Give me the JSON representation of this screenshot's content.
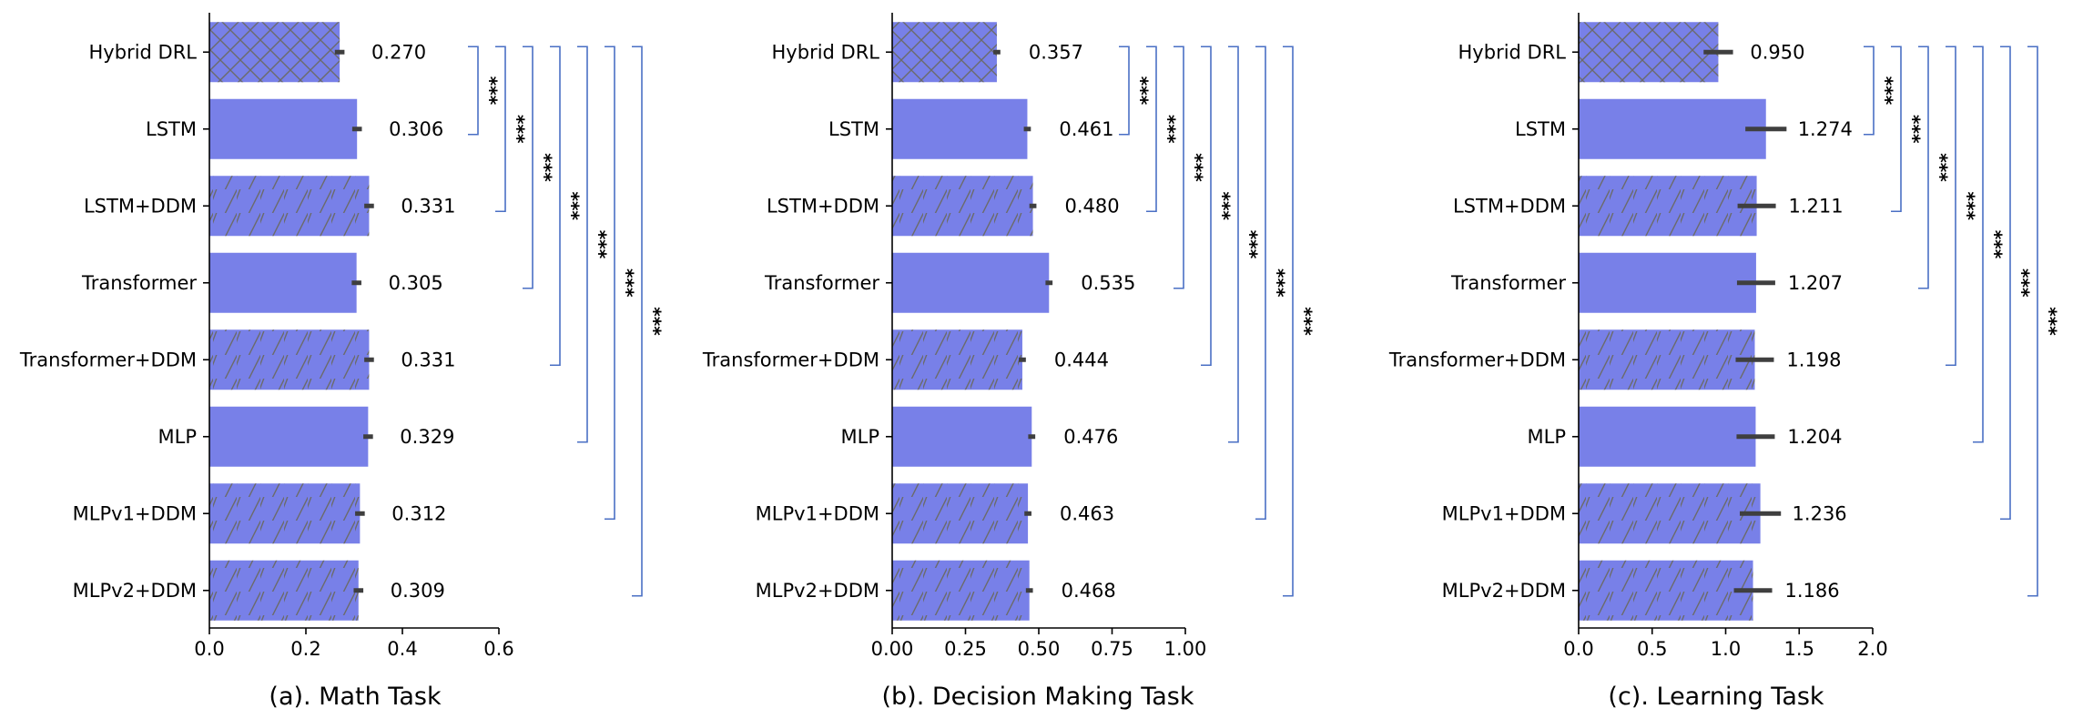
{
  "chart_data": [
    {
      "type": "bar",
      "orientation": "horizontal",
      "title": "(a). Math Task",
      "xlabel": "",
      "ylabel": "",
      "xlim": [
        0,
        0.6
      ],
      "xticks": [
        0.0,
        0.2,
        0.4,
        0.6
      ],
      "xtick_labels": [
        "0.0",
        "0.2",
        "0.4",
        "0.6"
      ],
      "categories": [
        "Hybrid DRL",
        "LSTM",
        "LSTM+DDM",
        "Transformer",
        "Transformer+DDM",
        "MLP",
        "MLPv1+DDM",
        "MLPv2+DDM"
      ],
      "values": [
        0.27,
        0.306,
        0.331,
        0.305,
        0.331,
        0.329,
        0.312,
        0.309
      ],
      "value_labels": [
        "0.270",
        "0.306",
        "0.331",
        "0.305",
        "0.331",
        "0.329",
        "0.312",
        "0.309"
      ],
      "error": [
        0.01,
        0.01,
        0.01,
        0.01,
        0.01,
        0.01,
        0.01,
        0.01
      ],
      "patterns": [
        "crosshatch",
        "solid",
        "diagonal",
        "solid",
        "diagonal",
        "solid",
        "diagonal",
        "diagonal"
      ],
      "significance": [
        {
          "from": "Hybrid DRL",
          "to": "LSTM",
          "label": "***"
        },
        {
          "from": "Hybrid DRL",
          "to": "LSTM+DDM",
          "label": "***"
        },
        {
          "from": "Hybrid DRL",
          "to": "Transformer",
          "label": "***"
        },
        {
          "from": "Hybrid DRL",
          "to": "Transformer+DDM",
          "label": "***"
        },
        {
          "from": "Hybrid DRL",
          "to": "MLP",
          "label": "***"
        },
        {
          "from": "Hybrid DRL",
          "to": "MLPv1+DDM",
          "label": "***"
        },
        {
          "from": "Hybrid DRL",
          "to": "MLPv2+DDM",
          "label": "***"
        }
      ]
    },
    {
      "type": "bar",
      "orientation": "horizontal",
      "title": "(b). Decision Making Task",
      "xlabel": "",
      "ylabel": "",
      "xlim": [
        0,
        1.0
      ],
      "xticks": [
        0.0,
        0.25,
        0.5,
        0.75,
        1.0
      ],
      "xtick_labels": [
        "0.00",
        "0.25",
        "0.50",
        "0.75",
        "1.00"
      ],
      "categories": [
        "Hybrid DRL",
        "LSTM",
        "LSTM+DDM",
        "Transformer",
        "Transformer+DDM",
        "MLP",
        "MLPv1+DDM",
        "MLPv2+DDM"
      ],
      "values": [
        0.357,
        0.461,
        0.48,
        0.535,
        0.444,
        0.476,
        0.463,
        0.468
      ],
      "value_labels": [
        "0.357",
        "0.461",
        "0.480",
        "0.535",
        "0.444",
        "0.476",
        "0.463",
        "0.468"
      ],
      "error": [
        0.012,
        0.012,
        0.012,
        0.012,
        0.012,
        0.012,
        0.012,
        0.012
      ],
      "patterns": [
        "crosshatch",
        "solid",
        "diagonal",
        "solid",
        "diagonal",
        "solid",
        "diagonal",
        "diagonal"
      ],
      "significance": [
        {
          "from": "Hybrid DRL",
          "to": "LSTM",
          "label": "***"
        },
        {
          "from": "Hybrid DRL",
          "to": "LSTM+DDM",
          "label": "***"
        },
        {
          "from": "Hybrid DRL",
          "to": "Transformer",
          "label": "***"
        },
        {
          "from": "Hybrid DRL",
          "to": "Transformer+DDM",
          "label": "***"
        },
        {
          "from": "Hybrid DRL",
          "to": "MLP",
          "label": "***"
        },
        {
          "from": "Hybrid DRL",
          "to": "MLPv1+DDM",
          "label": "***"
        },
        {
          "from": "Hybrid DRL",
          "to": "MLPv2+DDM",
          "label": "***"
        }
      ]
    },
    {
      "type": "bar",
      "orientation": "horizontal",
      "title": "(c). Learning Task",
      "xlabel": "",
      "ylabel": "",
      "xlim": [
        0,
        2.0
      ],
      "xticks": [
        0.0,
        0.5,
        1.0,
        1.5,
        2.0
      ],
      "xtick_labels": [
        "0.0",
        "0.5",
        "1.0",
        "1.5",
        "2.0"
      ],
      "categories": [
        "Hybrid DRL",
        "LSTM",
        "LSTM+DDM",
        "Transformer",
        "Transformer+DDM",
        "MLP",
        "MLPv1+DDM",
        "MLPv2+DDM"
      ],
      "values": [
        0.95,
        1.274,
        1.211,
        1.207,
        1.198,
        1.204,
        1.236,
        1.186
      ],
      "value_labels": [
        "0.950",
        "1.274",
        "1.211",
        "1.207",
        "1.198",
        "1.204",
        "1.236",
        "1.186"
      ],
      "error": [
        0.1,
        0.14,
        0.13,
        0.13,
        0.13,
        0.13,
        0.14,
        0.13
      ],
      "patterns": [
        "crosshatch",
        "solid",
        "diagonal",
        "solid",
        "diagonal",
        "solid",
        "diagonal",
        "diagonal"
      ],
      "significance": [
        {
          "from": "Hybrid DRL",
          "to": "LSTM",
          "label": "***"
        },
        {
          "from": "Hybrid DRL",
          "to": "LSTM+DDM",
          "label": "***"
        },
        {
          "from": "Hybrid DRL",
          "to": "Transformer",
          "label": "***"
        },
        {
          "from": "Hybrid DRL",
          "to": "Transformer+DDM",
          "label": "***"
        },
        {
          "from": "Hybrid DRL",
          "to": "MLP",
          "label": "***"
        },
        {
          "from": "Hybrid DRL",
          "to": "MLPv1+DDM",
          "label": "***"
        },
        {
          "from": "Hybrid DRL",
          "to": "MLPv2+DDM",
          "label": "***"
        }
      ]
    }
  ],
  "colors": {
    "bar_fill": "#7880e8",
    "hatch": "#6b6b6b",
    "errorbar": "#3f3f3f",
    "bracket": "#4a6fc4",
    "text": "#000000"
  }
}
